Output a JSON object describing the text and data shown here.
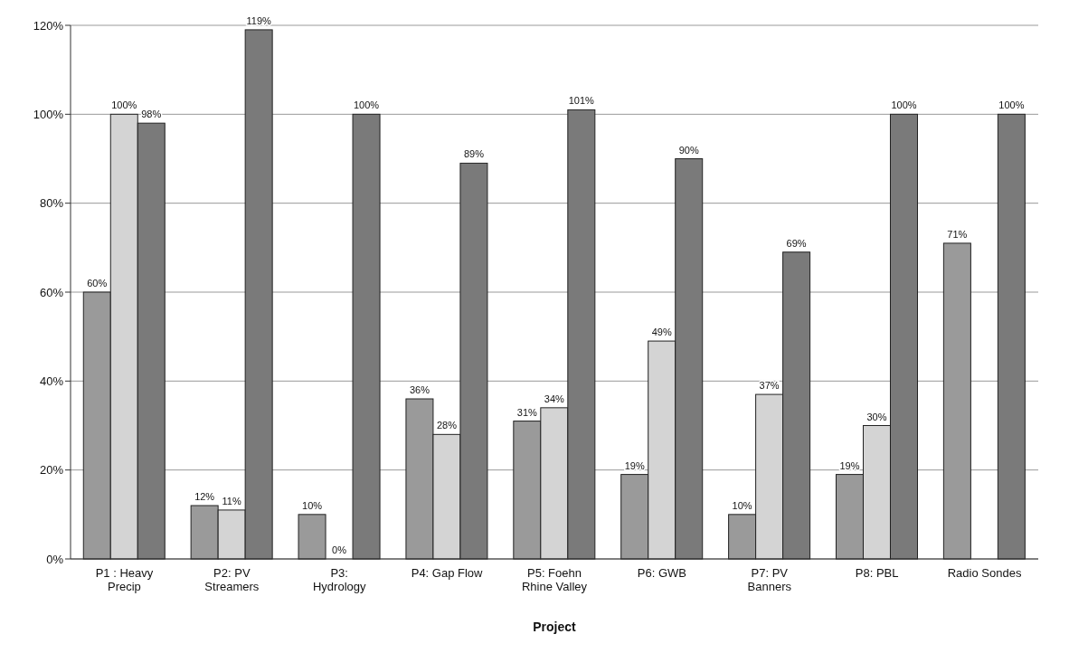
{
  "chart_data": {
    "type": "bar",
    "xlabel": "Project",
    "categories": [
      "P1 : Heavy Precip",
      "P2: PV Streamers",
      "P3: Hydrology",
      "P4: Gap Flow",
      "P5: Foehn Rhine Valley",
      "P6: GWB",
      "P7: PV Banners",
      "P8: PBL",
      "Radio Sondes"
    ],
    "series": [
      {
        "color": "#9a9a9a",
        "values": [
          60,
          12,
          10,
          36,
          31,
          19,
          10,
          19,
          71
        ],
        "value_labels": [
          "60%",
          "12%",
          "10%",
          "36%",
          "31%",
          "19%",
          "10%",
          "19%",
          "71%"
        ]
      },
      {
        "color": "#d4d4d4",
        "values": [
          100,
          11,
          0,
          28,
          34,
          49,
          37,
          30,
          null
        ],
        "value_labels": [
          "100%",
          "11%",
          "0%",
          "28%",
          "34%",
          "49%",
          "37%",
          "30%",
          null
        ]
      },
      {
        "color": "#7a7a7a",
        "values": [
          98,
          119,
          100,
          89,
          101,
          90,
          69,
          100,
          100
        ],
        "value_labels": [
          "98%",
          "119%",
          "100%",
          "89%",
          "101%",
          "90%",
          "69%",
          "100%",
          "100%"
        ]
      }
    ],
    "ylim": [
      0,
      120
    ],
    "yticks": [
      {
        "value": 0,
        "label": "0%"
      },
      {
        "value": 20,
        "label": "20%"
      },
      {
        "value": 40,
        "label": "40%"
      },
      {
        "value": 60,
        "label": "60%"
      },
      {
        "value": 80,
        "label": "80%"
      },
      {
        "value": 100,
        "label": "100%"
      },
      {
        "value": 120,
        "label": "120%"
      }
    ],
    "grid": "y",
    "legend": false
  }
}
